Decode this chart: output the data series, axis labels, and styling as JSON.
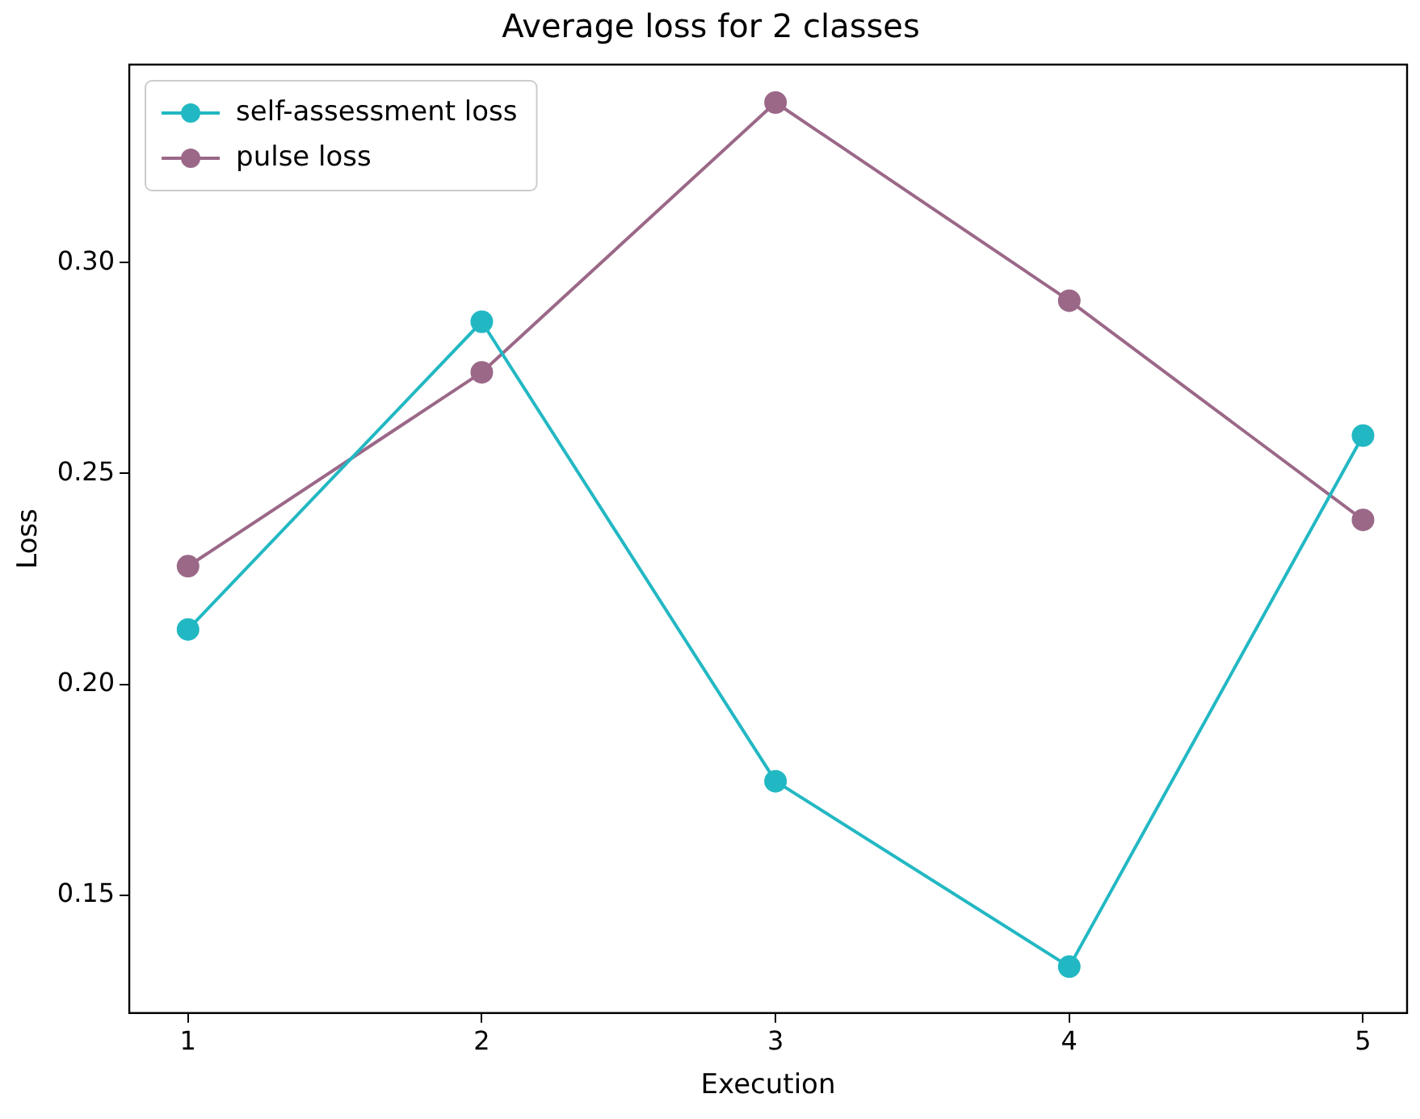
{
  "chart_data": {
    "type": "line",
    "title": "Average loss for 2 classes",
    "xlabel": "Execution",
    "ylabel": "Loss",
    "x": [
      1,
      2,
      3,
      4,
      5
    ],
    "series": [
      {
        "name": "self-assessment loss",
        "color": "#22b8c3",
        "values": [
          0.213,
          0.286,
          0.177,
          0.133,
          0.259
        ]
      },
      {
        "name": "pulse loss",
        "color": "#9b6888",
        "values": [
          0.228,
          0.274,
          0.338,
          0.291,
          0.239
        ]
      }
    ],
    "xlim": [
      0.8,
      5.15
    ],
    "xticks": [
      1,
      2,
      3,
      4,
      5
    ],
    "ylim": [
      0.122,
      0.347
    ],
    "yticks": [
      0.15,
      {
        "value": 0.2,
        "label": "0.20"
      },
      0.25,
      {
        "value": 0.3,
        "label": "0.30"
      }
    ],
    "grid": false,
    "legend": "top left",
    "marker": "circle",
    "line_style": "solid"
  }
}
